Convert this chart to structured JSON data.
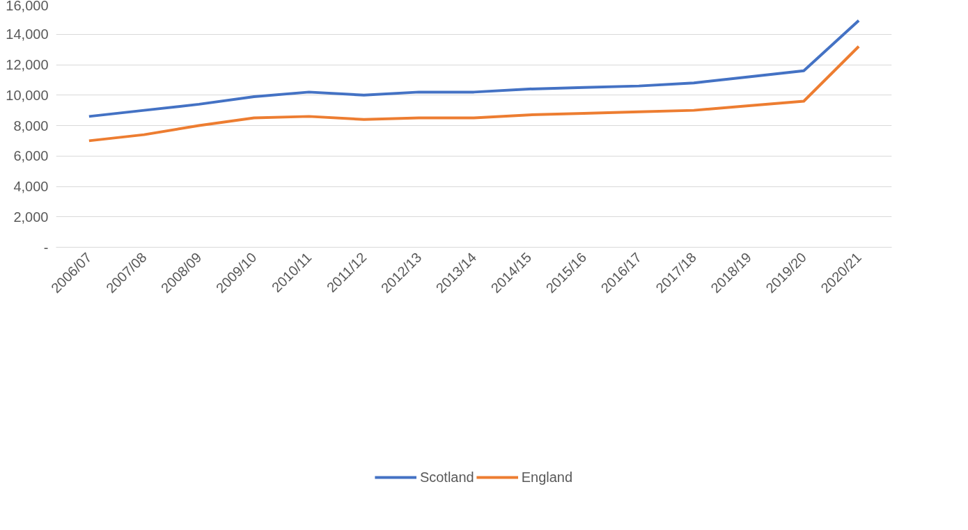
{
  "chart_data": {
    "type": "line",
    "categories": [
      "2006/07",
      "2007/08",
      "2008/09",
      "2009/10",
      "2010/11",
      "2011/12",
      "2012/13",
      "2013/14",
      "2014/15",
      "2015/16",
      "2016/17",
      "2017/18",
      "2018/19",
      "2019/20",
      "2020/21"
    ],
    "series": [
      {
        "name": "Scotland",
        "color": "#4472c4",
        "values": [
          8600,
          9000,
          9400,
          9900,
          10200,
          10000,
          10200,
          10200,
          10400,
          10500,
          10600,
          10800,
          11200,
          11600,
          14900
        ]
      },
      {
        "name": "England",
        "color": "#ed7d31",
        "values": [
          7000,
          7400,
          8000,
          8500,
          8600,
          8400,
          8500,
          8500,
          8700,
          8800,
          8900,
          9000,
          9300,
          9600,
          13200
        ]
      }
    ],
    "ylim": [
      0,
      16000
    ],
    "yticks": [
      {
        "value": 0,
        "label": "-"
      },
      {
        "value": 2000,
        "label": "2,000"
      },
      {
        "value": 4000,
        "label": "4,000"
      },
      {
        "value": 6000,
        "label": "6,000"
      },
      {
        "value": 8000,
        "label": "8,000"
      },
      {
        "value": 10000,
        "label": "10,000"
      },
      {
        "value": 12000,
        "label": "12,000"
      },
      {
        "value": 14000,
        "label": "14,000"
      },
      {
        "value": 16000,
        "label": "16,000"
      }
    ],
    "grid": "y",
    "legend": "bottom",
    "marker": "none",
    "line_style": "solid"
  }
}
